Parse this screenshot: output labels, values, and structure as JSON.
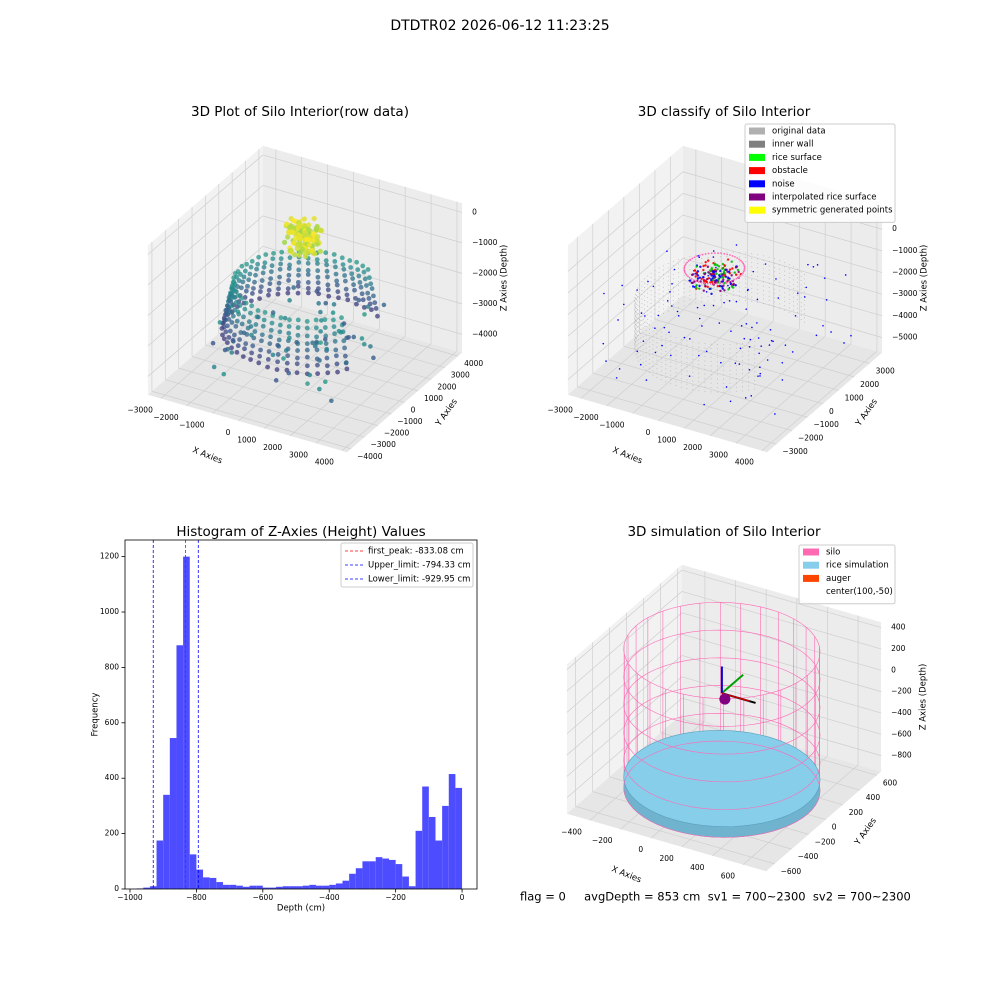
{
  "title": "DTDTR02 2026-06-12 11:23:25",
  "footer": "flag = 0     avgDepth = 853 cm  sv1 = 700~2300  sv2 = 700~2300",
  "chart_data": [
    {
      "type": "scatter3d",
      "title": "3D Plot of Silo Interior(row data)",
      "xlabel": "X Axies",
      "ylabel": "Y Axies",
      "zlabel": "Z Axies (Depth)",
      "xlim": [
        -3500,
        4200
      ],
      "ylim": [
        -4300,
        4300
      ],
      "zlim": [
        -4600,
        300
      ],
      "xticks": [
        {
          "value": -3000,
          "label": "−3000"
        },
        {
          "value": -2000,
          "label": "−2000"
        },
        {
          "value": -1000,
          "label": "−1000"
        },
        0,
        1000,
        2000,
        3000,
        4000
      ],
      "yticks": [
        {
          "value": -4000,
          "label": "−4000"
        },
        {
          "value": -3000,
          "label": "−3000"
        },
        {
          "value": -2000,
          "label": "−2000"
        },
        {
          "value": -1000,
          "label": "−1000"
        },
        0,
        1000,
        2000,
        3000,
        4000
      ],
      "zticks": [
        {
          "value": -4000,
          "label": "−4000"
        },
        {
          "value": -3000,
          "label": "−3000"
        },
        {
          "value": -2000,
          "label": "−2000"
        },
        {
          "value": -1000,
          "label": "−1000"
        },
        0
      ]
    },
    {
      "type": "scatter3d",
      "title": "3D classify of Silo Interior",
      "xlabel": "X Axies",
      "ylabel": "Y Axies",
      "zlabel": "Z Axies (Depth)",
      "xlim": [
        -3500,
        4200
      ],
      "ylim": [
        -3600,
        3800
      ],
      "zlim": [
        -5700,
        1200
      ],
      "xticks": [
        {
          "value": -3000,
          "label": "−3000"
        },
        {
          "value": -2000,
          "label": "−2000"
        },
        {
          "value": -1000,
          "label": "−1000"
        },
        0,
        1000,
        2000,
        3000,
        4000
      ],
      "yticks": [
        {
          "value": -3000,
          "label": "−3000"
        },
        {
          "value": -2000,
          "label": "−2000"
        },
        {
          "value": -1000,
          "label": "−1000"
        },
        0,
        1000,
        2000,
        3000
      ],
      "zticks": [
        {
          "value": -5000,
          "label": "−5000"
        },
        {
          "value": -4000,
          "label": "−4000"
        },
        {
          "value": -3000,
          "label": "−3000"
        },
        {
          "value": -2000,
          "label": "−2000"
        },
        {
          "value": -1000,
          "label": "−1000"
        },
        0
      ],
      "legend": [
        {
          "name": "original data",
          "color": "#b0b0b0"
        },
        {
          "name": "inner wall",
          "color": "#808080"
        },
        {
          "name": "rice surface",
          "color": "#00ff00"
        },
        {
          "name": "obstacle",
          "color": "#ff0000"
        },
        {
          "name": "noise",
          "color": "#0000ff"
        },
        {
          "name": "interpolated rice surface",
          "color": "#800080"
        },
        {
          "name": "symmetric generated points",
          "color": "#ffff00"
        }
      ],
      "legend_loc": "upper right"
    },
    {
      "type": "histogram",
      "title": "Histogram of Z-Axies (Height) Values",
      "xlabel": "Depth (cm)",
      "ylabel": "Frequency",
      "color": "#4d4dff",
      "bins": [
        -1000,
        -980,
        -960,
        -940,
        -920,
        -900,
        -880,
        -860,
        -840,
        -820,
        -800,
        -780,
        -760,
        -740,
        -720,
        -700,
        -680,
        -660,
        -640,
        -620,
        -600,
        -580,
        -560,
        -540,
        -520,
        -500,
        -480,
        -460,
        -440,
        -420,
        -400,
        -380,
        -360,
        -340,
        -320,
        -300,
        -280,
        -260,
        -240,
        -220,
        -200,
        -180,
        -160,
        -140,
        -120,
        -100,
        -80,
        -60,
        -40,
        -20,
        0
      ],
      "counts": [
        0,
        2,
        5,
        10,
        175,
        340,
        545,
        880,
        1200,
        125,
        70,
        42,
        40,
        25,
        15,
        15,
        12,
        8,
        12,
        12,
        5,
        5,
        8,
        10,
        10,
        10,
        12,
        15,
        12,
        12,
        15,
        20,
        30,
        55,
        75,
        100,
        100,
        115,
        110,
        105,
        90,
        45,
        10,
        210,
        370,
        260,
        175,
        300,
        415,
        365
      ],
      "xlim": [
        -1015,
        45
      ],
      "ylim": [
        0,
        1260
      ],
      "xticks": [
        {
          "value": -1000,
          "label": "−1000"
        },
        {
          "value": -800,
          "label": "−800"
        },
        {
          "value": -600,
          "label": "−600"
        },
        {
          "value": -400,
          "label": "−400"
        },
        {
          "value": -200,
          "label": "−200"
        },
        0
      ],
      "yticks": [
        0,
        200,
        400,
        600,
        800,
        1000,
        1200
      ],
      "vlines": [
        {
          "label": "first_peak: -833.08 cm",
          "x": -833.08,
          "color": "#ff0000"
        },
        {
          "label": "Upper_limit: -794.33 cm",
          "x": -794.33,
          "color": "#0000ff"
        },
        {
          "label": "Lower_limit: -929.95 cm",
          "x": -929.95,
          "color": "#0000ff"
        }
      ],
      "legend_loc": "upper right"
    },
    {
      "type": "surface3d",
      "title": "3D simulation of Silo Interior",
      "xlabel": "X Axies",
      "ylabel": "Y Axies",
      "zlabel": "Z Axies (Depth)",
      "xlim": [
        -550,
        750
      ],
      "ylim": [
        -700,
        650
      ],
      "zlim": [
        -950,
        450
      ],
      "xticks": [
        {
          "value": -400,
          "label": "−400"
        },
        {
          "value": -200,
          "label": "−200"
        },
        0,
        200,
        400,
        600
      ],
      "yticks": [
        {
          "value": -600,
          "label": "−600"
        },
        {
          "value": -400,
          "label": "−400"
        },
        {
          "value": -200,
          "label": "−200"
        },
        0,
        200,
        400,
        600
      ],
      "zticks": [
        {
          "value": -800,
          "label": "−800"
        },
        {
          "value": -600,
          "label": "−600"
        },
        {
          "value": -400,
          "label": "−400"
        },
        {
          "value": -200,
          "label": "−200"
        },
        0,
        200,
        400
      ],
      "legend": [
        {
          "name": "silo",
          "color": "#ff69b4"
        },
        {
          "name": "rice simulation",
          "color": "#87ceeb"
        },
        {
          "name": "auger",
          "color": "#ff4500"
        },
        {
          "name": "center(100,-50)"
        }
      ],
      "legend_loc": "upper right"
    }
  ]
}
